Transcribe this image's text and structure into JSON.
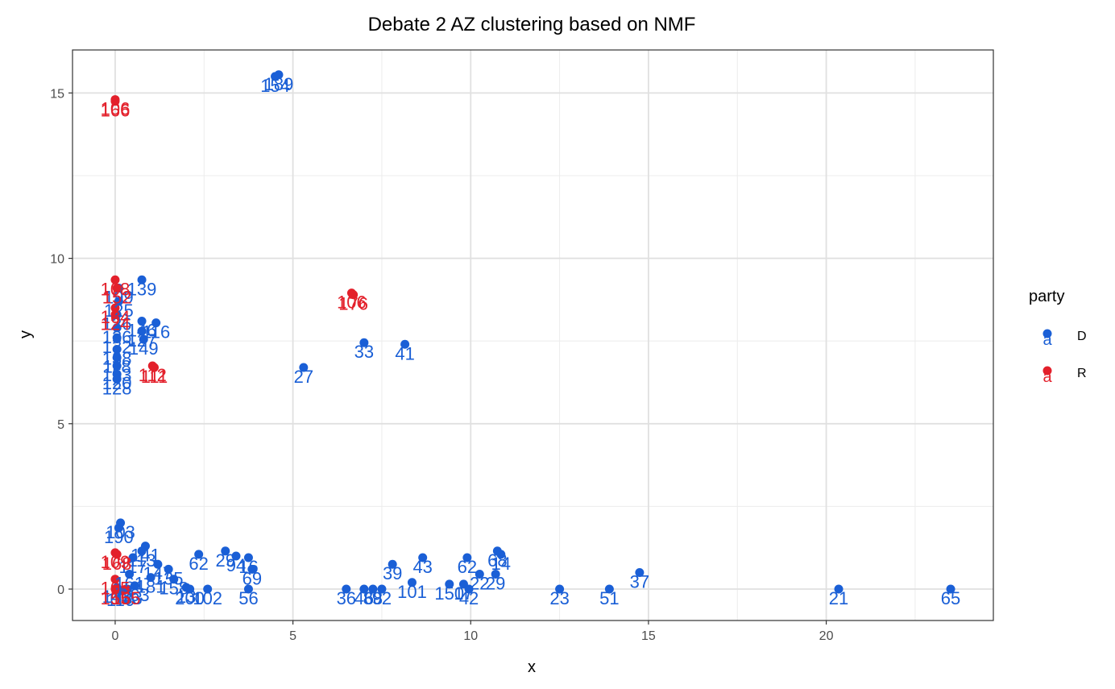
{
  "chart_data": {
    "type": "scatter",
    "title": "Debate 2 AZ clustering based on NMF",
    "xlabel": "x",
    "ylabel": "y",
    "xlim": [
      -1.2,
      24.7
    ],
    "ylim": [
      -0.95,
      16.3
    ],
    "x_ticks": [
      0,
      5,
      10,
      15,
      20
    ],
    "y_ticks": [
      0,
      5,
      10,
      15
    ],
    "grid": true,
    "legend": {
      "title": "party",
      "position": "right",
      "glyph_text": "a",
      "entries": [
        {
          "label": "D",
          "color": "#1a5fd6"
        },
        {
          "label": "R",
          "color": "#e3202b"
        }
      ]
    },
    "series": [
      {
        "name": "D",
        "color": "#1a5fd6",
        "points": [
          {
            "x": 4.6,
            "y": 15.55,
            "label": "189"
          },
          {
            "x": 4.5,
            "y": 15.5,
            "label": "154"
          },
          {
            "x": 0.75,
            "y": 9.35,
            "label": "139"
          },
          {
            "x": 0.1,
            "y": 9.1,
            "label": "199"
          },
          {
            "x": 0.1,
            "y": 8.7,
            "label": "125"
          },
          {
            "x": 0.05,
            "y": 8.3,
            "label": "126"
          },
          {
            "x": 0.75,
            "y": 8.1,
            "label": "146"
          },
          {
            "x": 1.15,
            "y": 8.05,
            "label": "116"
          },
          {
            "x": 0.05,
            "y": 7.9,
            "label": "136"
          },
          {
            "x": 0.05,
            "y": 7.6,
            "label": "132"
          },
          {
            "x": 0.75,
            "y": 7.8,
            "label": "127"
          },
          {
            "x": 0.8,
            "y": 7.55,
            "label": "149"
          },
          {
            "x": 0.05,
            "y": 7.25,
            "label": "138"
          },
          {
            "x": 0.05,
            "y": 7.0,
            "label": "118"
          },
          {
            "x": 0.05,
            "y": 6.75,
            "label": "153"
          },
          {
            "x": 0.05,
            "y": 6.5,
            "label": "120"
          },
          {
            "x": 0.05,
            "y": 6.35,
            "label": "128"
          },
          {
            "x": 7.0,
            "y": 7.45,
            "label": "33"
          },
          {
            "x": 8.15,
            "y": 7.4,
            "label": "41"
          },
          {
            "x": 5.3,
            "y": 6.7,
            "label": "27"
          },
          {
            "x": 0.15,
            "y": 2.0,
            "label": "103"
          },
          {
            "x": 0.1,
            "y": 1.85,
            "label": "190"
          },
          {
            "x": 0.85,
            "y": 1.3,
            "label": "141"
          },
          {
            "x": 0.75,
            "y": 1.15,
            "label": "113"
          },
          {
            "x": 0.5,
            "y": 0.95,
            "label": "117"
          },
          {
            "x": 1.2,
            "y": 0.75,
            "label": "147"
          },
          {
            "x": 1.5,
            "y": 0.6,
            "label": "135"
          },
          {
            "x": 2.35,
            "y": 1.05,
            "label": "62"
          },
          {
            "x": 3.1,
            "y": 1.15,
            "label": "29"
          },
          {
            "x": 3.4,
            "y": 1.0,
            "label": "94"
          },
          {
            "x": 3.75,
            "y": 0.95,
            "label": "16"
          },
          {
            "x": 3.85,
            "y": 0.6,
            "label": "69"
          },
          {
            "x": 0.4,
            "y": 0.45,
            "label": "161"
          },
          {
            "x": 1.0,
            "y": 0.35,
            "label": "181"
          },
          {
            "x": 1.65,
            "y": 0.3,
            "label": "158"
          },
          {
            "x": 2.0,
            "y": 0.05,
            "label": "13"
          },
          {
            "x": 2.1,
            "y": 0.0,
            "label": "200"
          },
          {
            "x": 2.6,
            "y": 0.0,
            "label": "102"
          },
          {
            "x": 3.75,
            "y": 0.0,
            "label": "56"
          },
          {
            "x": 0.05,
            "y": 0.05,
            "label": "143"
          },
          {
            "x": 0.15,
            "y": -0.05,
            "label": "110"
          },
          {
            "x": 0.55,
            "y": 0.1,
            "label": "163"
          },
          {
            "x": 0.35,
            "y": 0.0,
            "label": "133"
          },
          {
            "x": 7.8,
            "y": 0.75,
            "label": "39"
          },
          {
            "x": 8.65,
            "y": 0.95,
            "label": "43"
          },
          {
            "x": 9.9,
            "y": 0.95,
            "label": "62"
          },
          {
            "x": 10.75,
            "y": 1.15,
            "label": "68"
          },
          {
            "x": 10.85,
            "y": 1.05,
            "label": "14"
          },
          {
            "x": 10.7,
            "y": 0.45,
            "label": "29"
          },
          {
            "x": 10.25,
            "y": 0.45,
            "label": "22"
          },
          {
            "x": 8.35,
            "y": 0.2,
            "label": "101"
          },
          {
            "x": 9.4,
            "y": 0.15,
            "label": "150"
          },
          {
            "x": 9.8,
            "y": 0.15,
            "label": "17"
          },
          {
            "x": 6.5,
            "y": 0.0,
            "label": "36"
          },
          {
            "x": 7.0,
            "y": 0.0,
            "label": "46"
          },
          {
            "x": 7.25,
            "y": 0.0,
            "label": "88"
          },
          {
            "x": 7.5,
            "y": 0.0,
            "label": "92"
          },
          {
            "x": 9.95,
            "y": 0.0,
            "label": "42"
          },
          {
            "x": 12.5,
            "y": 0.0,
            "label": "23"
          },
          {
            "x": 13.9,
            "y": 0.0,
            "label": "51"
          },
          {
            "x": 14.75,
            "y": 0.5,
            "label": "37"
          },
          {
            "x": 20.35,
            "y": 0.0,
            "label": "21"
          },
          {
            "x": 23.5,
            "y": 0.0,
            "label": "65"
          }
        ]
      },
      {
        "name": "R",
        "color": "#e3202b",
        "points": [
          {
            "x": 0.0,
            "y": 14.8,
            "label": "106"
          },
          {
            "x": 0.0,
            "y": 14.75,
            "label": "166"
          },
          {
            "x": 0.0,
            "y": 9.35,
            "label": "108"
          },
          {
            "x": 0.05,
            "y": 9.1,
            "label": "152"
          },
          {
            "x": 0.0,
            "y": 8.5,
            "label": "164"
          },
          {
            "x": 0.0,
            "y": 8.3,
            "label": "124"
          },
          {
            "x": 6.65,
            "y": 8.95,
            "label": "106"
          },
          {
            "x": 6.7,
            "y": 8.9,
            "label": "176"
          },
          {
            "x": 1.05,
            "y": 6.75,
            "label": "112"
          },
          {
            "x": 1.1,
            "y": 6.7,
            "label": "111"
          },
          {
            "x": 0.0,
            "y": 1.1,
            "label": "109"
          },
          {
            "x": 0.05,
            "y": 1.05,
            "label": "168"
          },
          {
            "x": 0.0,
            "y": 0.3,
            "label": "105"
          },
          {
            "x": 0.0,
            "y": 0.0,
            "label": "155"
          },
          {
            "x": 0.3,
            "y": 0.0,
            "label": "165"
          }
        ]
      }
    ]
  }
}
